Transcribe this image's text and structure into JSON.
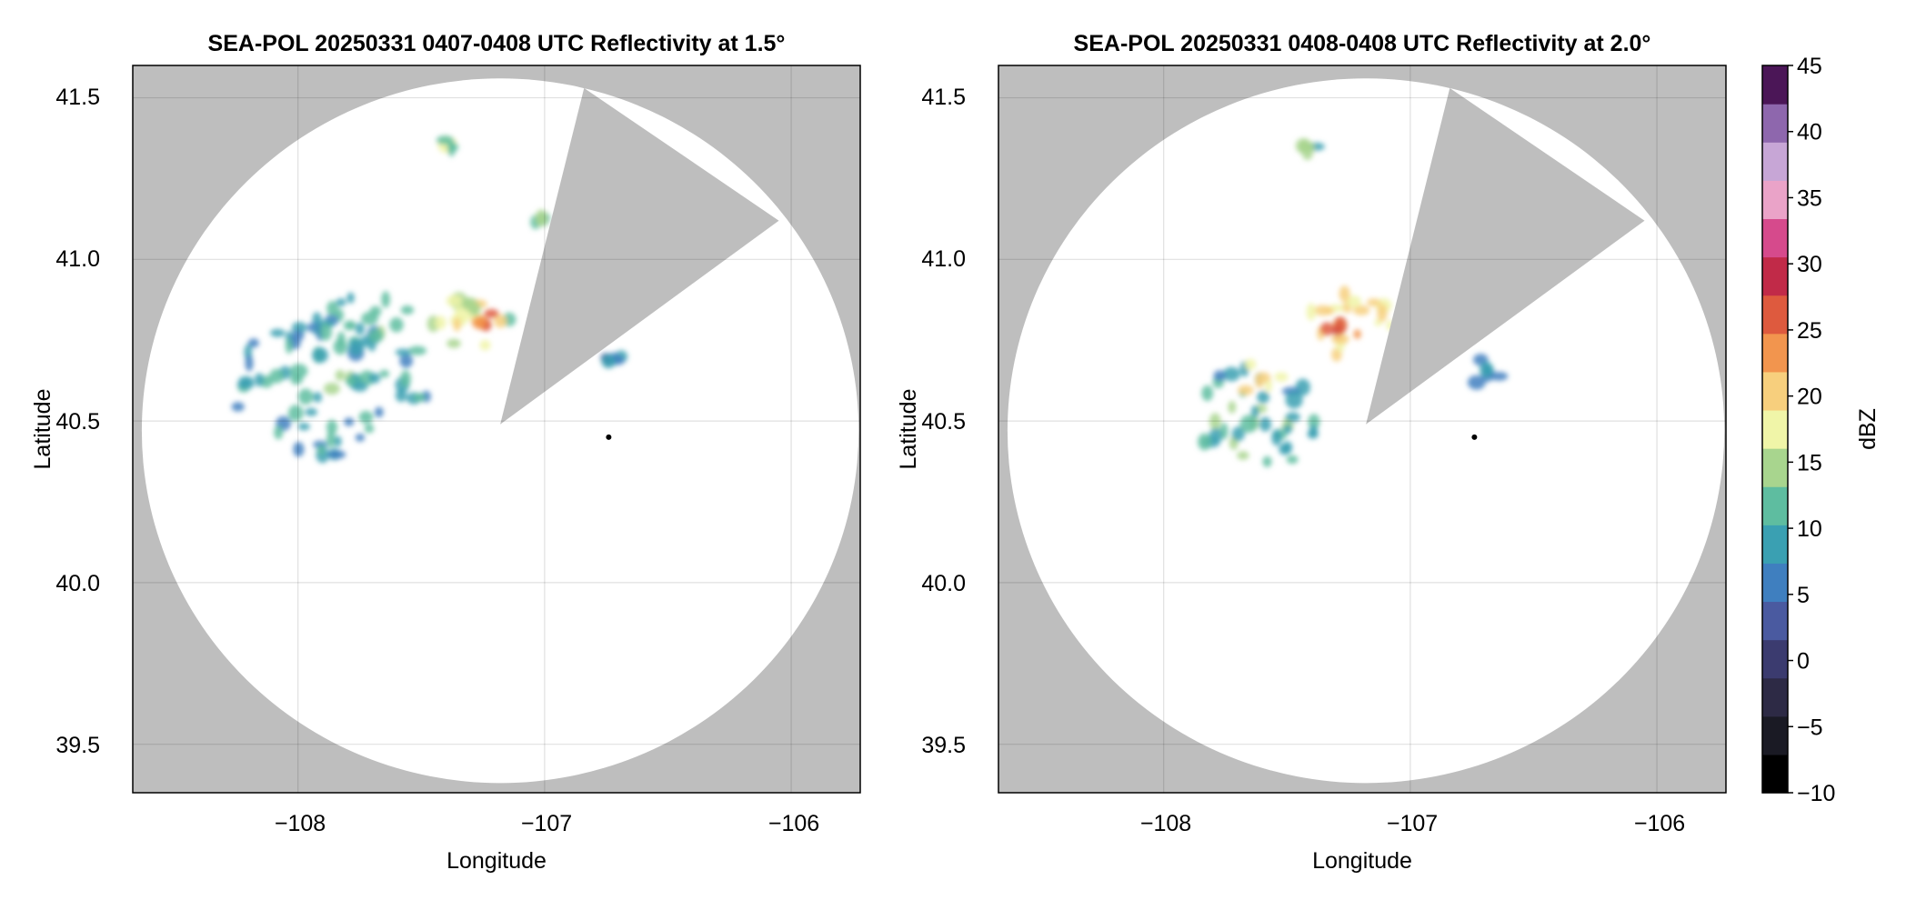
{
  "chart_data": [
    {
      "type": "heatmap",
      "title": "SEA-POL 20250331 0407-0408 UTC Reflectivity at 1.5°",
      "xlabel": "Longitude",
      "ylabel": "Latitude",
      "xlim": [
        -108.67,
        -105.72
      ],
      "ylim": [
        39.35,
        41.6
      ],
      "xticks": [
        -108,
        -107,
        -106
      ],
      "xtick_labels": [
        "−108",
        "−107",
        "−106"
      ],
      "yticks": [
        39.5,
        40.0,
        40.5,
        41.0,
        41.5
      ],
      "ytick_labels": [
        "39.5",
        "40.0",
        "40.5",
        "41.0",
        "41.5"
      ],
      "grid": true,
      "radar_center": [
        -107.18,
        40.47
      ],
      "blocked_sector_vertices": [
        [
          -107.18,
          40.49
        ],
        [
          -106.84,
          41.53
        ],
        [
          -106.05,
          41.12
        ]
      ],
      "marker": [
        -106.74,
        40.45
      ],
      "echoes": [
        {
          "lon": -107.87,
          "lat": 40.62,
          "dlon": 0.4,
          "dlat": 0.23,
          "dbz": 12
        },
        {
          "lon": -107.7,
          "lat": 40.8,
          "dlon": 0.2,
          "dlat": 0.1,
          "dbz": 13
        },
        {
          "lon": -107.3,
          "lat": 40.82,
          "dlon": 0.16,
          "dlat": 0.12,
          "dbz": 18
        },
        {
          "lon": -107.22,
          "lat": 40.81,
          "dlon": 0.05,
          "dlat": 0.03,
          "dbz": 26
        },
        {
          "lon": -106.72,
          "lat": 40.7,
          "dlon": 0.05,
          "dlat": 0.02,
          "dbz": 9
        },
        {
          "lon": -107.39,
          "lat": 41.36,
          "dlon": 0.03,
          "dlat": 0.02,
          "dbz": 17
        },
        {
          "lon": -107.02,
          "lat": 41.13,
          "dlon": 0.02,
          "dlat": 0.03,
          "dbz": 14
        }
      ]
    },
    {
      "type": "heatmap",
      "title": "SEA-POL 20250331 0408-0408 UTC Reflectivity at 2.0°",
      "xlabel": "Longitude",
      "ylabel": "Latitude",
      "xlim": [
        -108.67,
        -105.72
      ],
      "ylim": [
        39.35,
        41.6
      ],
      "xticks": [
        -108,
        -107,
        -106
      ],
      "xtick_labels": [
        "−108",
        "−107",
        "−106"
      ],
      "yticks": [
        39.5,
        40.0,
        40.5,
        41.0,
        41.5
      ],
      "ytick_labels": [
        "39.5",
        "40.0",
        "40.5",
        "41.0",
        "41.5"
      ],
      "grid": true,
      "radar_center": [
        -107.18,
        40.47
      ],
      "blocked_sector_vertices": [
        [
          -107.18,
          40.49
        ],
        [
          -106.84,
          41.53
        ],
        [
          -106.05,
          41.12
        ]
      ],
      "marker": [
        -106.74,
        40.45
      ],
      "echoes": [
        {
          "lon": -107.65,
          "lat": 40.5,
          "dlon": 0.28,
          "dlat": 0.17,
          "dbz": 13
        },
        {
          "lon": -107.62,
          "lat": 40.62,
          "dlon": 0.1,
          "dlat": 0.08,
          "dbz": 20
        },
        {
          "lon": -107.25,
          "lat": 40.8,
          "dlon": 0.2,
          "dlat": 0.1,
          "dbz": 22
        },
        {
          "lon": -107.28,
          "lat": 40.77,
          "dlon": 0.1,
          "dlat": 0.04,
          "dbz": 26
        },
        {
          "lon": -106.67,
          "lat": 40.64,
          "dlon": 0.08,
          "dlat": 0.07,
          "dbz": 9
        },
        {
          "lon": -107.41,
          "lat": 41.35,
          "dlon": 0.03,
          "dlat": 0.02,
          "dbz": 16
        }
      ]
    }
  ],
  "colorbar": {
    "label": "dBZ",
    "vmin": -10,
    "vmax": 45,
    "ticks": [
      -10,
      -5,
      0,
      5,
      10,
      15,
      20,
      25,
      30,
      35,
      40,
      45
    ],
    "tick_labels": [
      "−10",
      "−5",
      "0",
      "5",
      "10",
      "15",
      "20",
      "25",
      "30",
      "35",
      "40",
      "45"
    ],
    "colors": [
      "#000000",
      "#1a1a24",
      "#2d2a45",
      "#3b3b6f",
      "#4a5aa0",
      "#3f7fbf",
      "#3aa0b2",
      "#5ebda0",
      "#a8d58e",
      "#f0f5a8",
      "#f7cf7d",
      "#f2954e",
      "#de5a3e",
      "#c12a48",
      "#d64a8c",
      "#eaa3c8",
      "#c7a6d6",
      "#8e67ad",
      "#4b1657"
    ]
  },
  "colors": {
    "background_mask": "#bebebe",
    "coverage": "#ffffff",
    "grid": "#d9d9d9"
  }
}
